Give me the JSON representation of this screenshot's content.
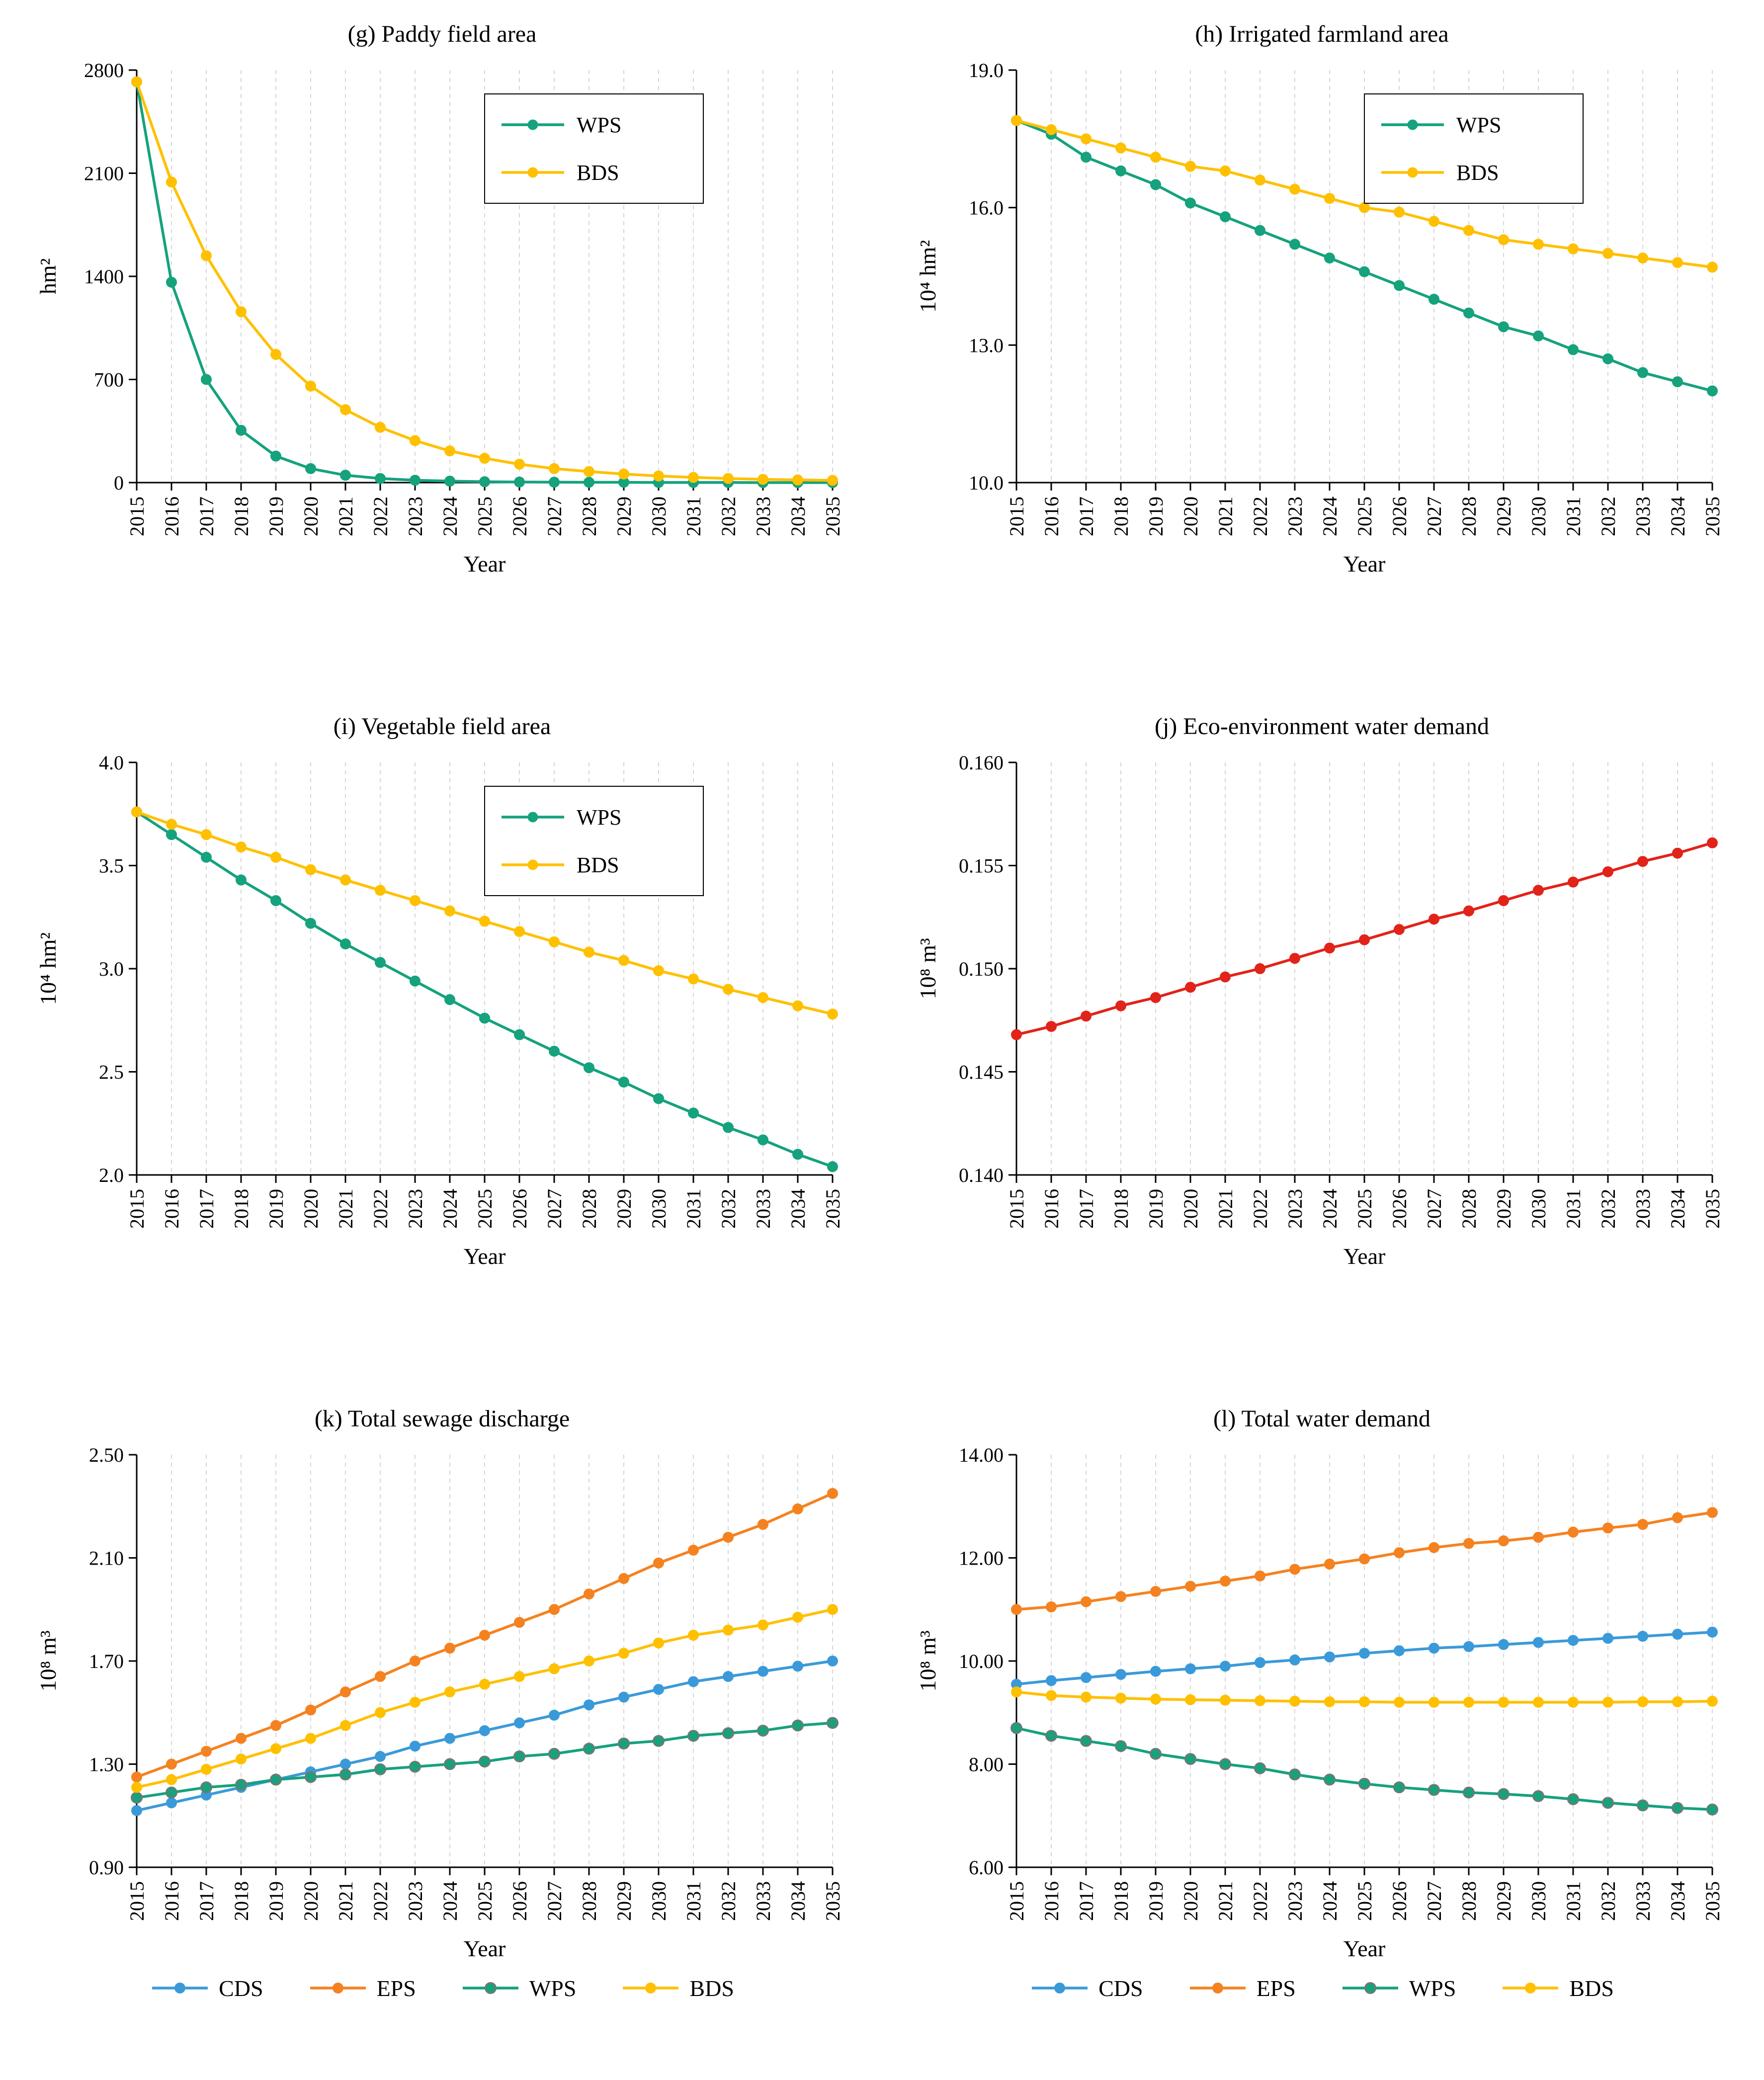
{
  "page": {
    "background": "#ffffff"
  },
  "palette": {
    "CDS": "#3a9ad9",
    "EPS": "#f58220",
    "WPS": "#15a27d",
    "BDS": "#ffc000",
    "eco_red": "#e2231a",
    "axis": "#000000",
    "grid": "#cccccc"
  },
  "chart_data": [
    {
      "id": "g",
      "type": "line",
      "title": "(g) Paddy field area",
      "xlabel": "Year",
      "ylabel": "hm²",
      "x": [
        2015,
        2016,
        2017,
        2018,
        2019,
        2020,
        2021,
        2022,
        2023,
        2024,
        2025,
        2026,
        2027,
        2028,
        2029,
        2030,
        2031,
        2032,
        2033,
        2034,
        2035
      ],
      "ylim": [
        0,
        2800
      ],
      "ytick_values": [
        0,
        700,
        1400,
        2100,
        2800
      ],
      "ytick_labels": [
        "0",
        "700",
        "1400",
        "2100",
        "2800"
      ],
      "grid": "vertical-dashed",
      "legend_position": "inside-top-right",
      "series": [
        {
          "name": "WPS",
          "color": "#15a27d",
          "values": [
            2720,
            1360,
            700,
            355,
            180,
            95,
            50,
            28,
            16,
            10,
            6,
            4,
            3,
            2,
            2,
            1,
            1,
            1,
            0,
            0,
            0
          ]
        },
        {
          "name": "BDS",
          "color": "#ffc000",
          "values": [
            2720,
            2040,
            1540,
            1160,
            870,
            655,
            495,
            375,
            285,
            215,
            165,
            125,
            95,
            75,
            58,
            45,
            35,
            28,
            22,
            18,
            15
          ]
        }
      ]
    },
    {
      "id": "h",
      "type": "line",
      "title": "(h) Irrigated farmland area",
      "xlabel": "Year",
      "ylabel": "10⁴ hm²",
      "x": [
        2015,
        2016,
        2017,
        2018,
        2019,
        2020,
        2021,
        2022,
        2023,
        2024,
        2025,
        2026,
        2027,
        2028,
        2029,
        2030,
        2031,
        2032,
        2033,
        2034,
        2035
      ],
      "ylim": [
        10.0,
        19.0
      ],
      "ytick_values": [
        10.0,
        13.0,
        16.0,
        19.0
      ],
      "ytick_labels": [
        "10.0",
        "13.0",
        "16.0",
        "19.0"
      ],
      "grid": "vertical-dashed",
      "legend_position": "inside-top-right",
      "series": [
        {
          "name": "WPS",
          "color": "#15a27d",
          "values": [
            17.9,
            17.6,
            17.1,
            16.8,
            16.5,
            16.1,
            15.8,
            15.5,
            15.2,
            14.9,
            14.6,
            14.3,
            14.0,
            13.7,
            13.4,
            13.2,
            12.9,
            12.7,
            12.4,
            12.2,
            12.0
          ]
        },
        {
          "name": "BDS",
          "color": "#ffc000",
          "values": [
            17.9,
            17.7,
            17.5,
            17.3,
            17.1,
            16.9,
            16.8,
            16.6,
            16.4,
            16.2,
            16.0,
            15.9,
            15.7,
            15.5,
            15.3,
            15.2,
            15.1,
            15.0,
            14.9,
            14.8,
            14.7
          ]
        }
      ]
    },
    {
      "id": "i",
      "type": "line",
      "title": "(i) Vegetable field area",
      "xlabel": "Year",
      "ylabel": "10⁴ hm²",
      "x": [
        2015,
        2016,
        2017,
        2018,
        2019,
        2020,
        2021,
        2022,
        2023,
        2024,
        2025,
        2026,
        2027,
        2028,
        2029,
        2030,
        2031,
        2032,
        2033,
        2034,
        2035
      ],
      "ylim": [
        2.0,
        4.0
      ],
      "ytick_values": [
        2.0,
        2.5,
        3.0,
        3.5,
        4.0
      ],
      "ytick_labels": [
        "2.0",
        "2.5",
        "3.0",
        "3.5",
        "4.0"
      ],
      "grid": "vertical-dashed",
      "legend_position": "inside-top-right",
      "series": [
        {
          "name": "WPS",
          "color": "#15a27d",
          "values": [
            3.76,
            3.65,
            3.54,
            3.43,
            3.33,
            3.22,
            3.12,
            3.03,
            2.94,
            2.85,
            2.76,
            2.68,
            2.6,
            2.52,
            2.45,
            2.37,
            2.3,
            2.23,
            2.17,
            2.1,
            2.04
          ]
        },
        {
          "name": "BDS",
          "color": "#ffc000",
          "values": [
            3.76,
            3.7,
            3.65,
            3.59,
            3.54,
            3.48,
            3.43,
            3.38,
            3.33,
            3.28,
            3.23,
            3.18,
            3.13,
            3.08,
            3.04,
            2.99,
            2.95,
            2.9,
            2.86,
            2.82,
            2.78
          ]
        }
      ]
    },
    {
      "id": "j",
      "type": "line",
      "title": "(j) Eco-environment water demand",
      "xlabel": "Year",
      "ylabel": "10⁸ m³",
      "x": [
        2015,
        2016,
        2017,
        2018,
        2019,
        2020,
        2021,
        2022,
        2023,
        2024,
        2025,
        2026,
        2027,
        2028,
        2029,
        2030,
        2031,
        2032,
        2033,
        2034,
        2035
      ],
      "ylim": [
        0.14,
        0.16
      ],
      "ytick_values": [
        0.14,
        0.145,
        0.15,
        0.155,
        0.16
      ],
      "ytick_labels": [
        "0.140",
        "0.145",
        "0.150",
        "0.155",
        "0.160"
      ],
      "grid": "vertical-dashed",
      "legend_position": "none",
      "series": [
        {
          "name": "Eco-environment water demand",
          "color": "#e2231a",
          "values": [
            0.1468,
            0.1472,
            0.1477,
            0.1482,
            0.1486,
            0.1491,
            0.1496,
            0.15,
            0.1505,
            0.151,
            0.1514,
            0.1519,
            0.1524,
            0.1528,
            0.1533,
            0.1538,
            0.1542,
            0.1547,
            0.1552,
            0.1556,
            0.1561
          ]
        }
      ]
    },
    {
      "id": "k",
      "type": "line",
      "title": "(k) Total sewage discharge",
      "xlabel": "Year",
      "ylabel": "10⁸ m³",
      "x": [
        2015,
        2016,
        2017,
        2018,
        2019,
        2020,
        2021,
        2022,
        2023,
        2024,
        2025,
        2026,
        2027,
        2028,
        2029,
        2030,
        2031,
        2032,
        2033,
        2034,
        2035
      ],
      "ylim": [
        0.9,
        2.5
      ],
      "ytick_values": [
        0.9,
        1.3,
        1.7,
        2.1,
        2.5
      ],
      "ytick_labels": [
        "0.90",
        "1.30",
        "1.70",
        "2.10",
        "2.50"
      ],
      "grid": "vertical-dashed",
      "legend_position": "bottom",
      "series": [
        {
          "name": "CDS",
          "color": "#3a9ad9",
          "values": [
            1.12,
            1.15,
            1.18,
            1.21,
            1.24,
            1.27,
            1.3,
            1.33,
            1.37,
            1.4,
            1.43,
            1.46,
            1.49,
            1.53,
            1.56,
            1.59,
            1.62,
            1.64,
            1.66,
            1.68,
            1.7
          ]
        },
        {
          "name": "EPS",
          "color": "#f58220",
          "values": [
            1.25,
            1.3,
            1.35,
            1.4,
            1.45,
            1.51,
            1.58,
            1.64,
            1.7,
            1.75,
            1.8,
            1.85,
            1.9,
            1.96,
            2.02,
            2.08,
            2.13,
            2.18,
            2.23,
            2.29,
            2.35
          ]
        },
        {
          "name": "WPS",
          "color": "#15a27d",
          "marker_stroke": "#767676",
          "values": [
            1.17,
            1.19,
            1.21,
            1.22,
            1.24,
            1.25,
            1.26,
            1.28,
            1.29,
            1.3,
            1.31,
            1.33,
            1.34,
            1.36,
            1.38,
            1.39,
            1.41,
            1.42,
            1.43,
            1.45,
            1.46
          ]
        },
        {
          "name": "BDS",
          "color": "#ffc000",
          "values": [
            1.21,
            1.24,
            1.28,
            1.32,
            1.36,
            1.4,
            1.45,
            1.5,
            1.54,
            1.58,
            1.61,
            1.64,
            1.67,
            1.7,
            1.73,
            1.77,
            1.8,
            1.82,
            1.84,
            1.87,
            1.9
          ]
        }
      ]
    },
    {
      "id": "l",
      "type": "line",
      "title": "(l) Total water demand",
      "xlabel": "Year",
      "ylabel": "10⁸ m³",
      "x": [
        2015,
        2016,
        2017,
        2018,
        2019,
        2020,
        2021,
        2022,
        2023,
        2024,
        2025,
        2026,
        2027,
        2028,
        2029,
        2030,
        2031,
        2032,
        2033,
        2034,
        2035
      ],
      "ylim": [
        6.0,
        14.0
      ],
      "ytick_values": [
        6.0,
        8.0,
        10.0,
        12.0,
        14.0
      ],
      "ytick_labels": [
        "6.00",
        "8.00",
        "10.00",
        "12.00",
        "14.00"
      ],
      "grid": "vertical-dashed",
      "legend_position": "bottom",
      "series": [
        {
          "name": "CDS",
          "color": "#3a9ad9",
          "values": [
            9.55,
            9.62,
            9.68,
            9.74,
            9.8,
            9.85,
            9.9,
            9.97,
            10.02,
            10.08,
            10.15,
            10.2,
            10.25,
            10.28,
            10.32,
            10.36,
            10.4,
            10.44,
            10.48,
            10.52,
            10.56
          ]
        },
        {
          "name": "EPS",
          "color": "#f58220",
          "values": [
            11.0,
            11.05,
            11.15,
            11.25,
            11.35,
            11.45,
            11.55,
            11.65,
            11.78,
            11.88,
            11.98,
            12.1,
            12.2,
            12.28,
            12.33,
            12.4,
            12.5,
            12.58,
            12.65,
            12.78,
            12.88
          ]
        },
        {
          "name": "WPS",
          "color": "#15a27d",
          "marker_stroke": "#767676",
          "values": [
            8.7,
            8.55,
            8.45,
            8.35,
            8.2,
            8.1,
            8.0,
            7.92,
            7.8,
            7.7,
            7.62,
            7.55,
            7.5,
            7.45,
            7.42,
            7.38,
            7.32,
            7.25,
            7.2,
            7.15,
            7.12
          ]
        },
        {
          "name": "BDS",
          "color": "#ffc000",
          "values": [
            9.4,
            9.33,
            9.3,
            9.28,
            9.26,
            9.25,
            9.24,
            9.23,
            9.22,
            9.21,
            9.21,
            9.2,
            9.2,
            9.2,
            9.2,
            9.2,
            9.2,
            9.2,
            9.21,
            9.21,
            9.22
          ]
        }
      ]
    }
  ]
}
